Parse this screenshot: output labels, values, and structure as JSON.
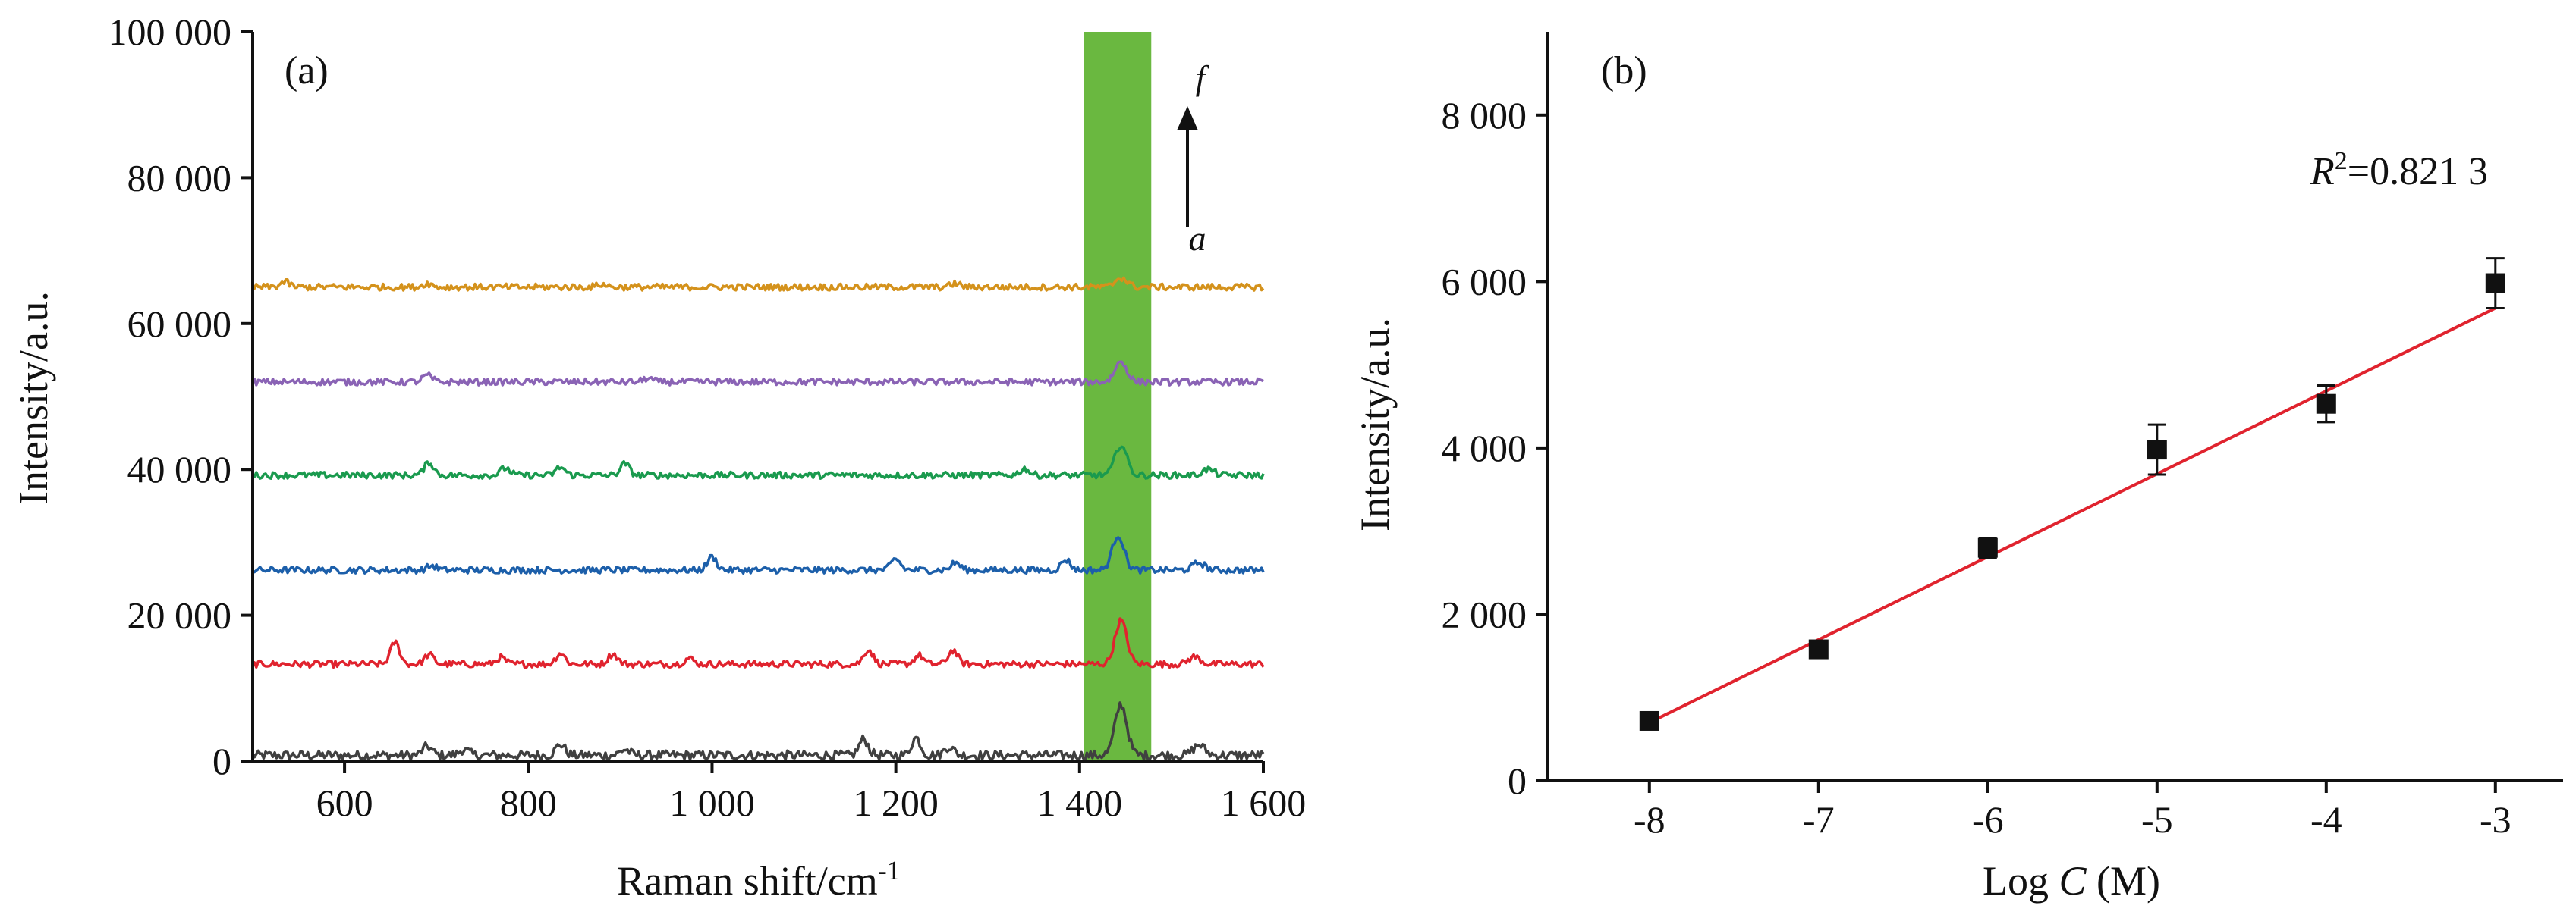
{
  "chart_data": [
    {
      "panel_label": "(a)",
      "type": "line",
      "xlabel": "Raman shift/cm",
      "xlabel_sup": "-1",
      "ylabel": "Intensity/a.u.",
      "xlim": [
        500,
        1600
      ],
      "ylim": [
        0,
        100000
      ],
      "x_ticks": [
        {
          "value": 600,
          "label": "600"
        },
        {
          "value": 800,
          "label": "800"
        },
        {
          "value": 1000,
          "label": "1 000"
        },
        {
          "value": 1200,
          "label": "1 200"
        },
        {
          "value": 1400,
          "label": "1 400"
        },
        {
          "value": 1600,
          "label": "1 600"
        }
      ],
      "y_ticks": [
        {
          "value": 0,
          "label": "0"
        },
        {
          "value": 20000,
          "label": "20 000"
        },
        {
          "value": 40000,
          "label": "40 000"
        },
        {
          "value": 60000,
          "label": "60 000"
        },
        {
          "value": 80000,
          "label": "80 000"
        },
        {
          "value": 100000,
          "label": "100 000"
        }
      ],
      "highlight_band": {
        "x_range": [
          1405,
          1478
        ],
        "color": "#6ab840"
      },
      "arrow": {
        "from": "a",
        "to": "f"
      },
      "series": [
        {
          "color": "#404040",
          "baseline": 800,
          "peaks": [
            [
              690,
              1200
            ],
            [
              730,
              800
            ],
            [
              835,
              1500
            ],
            [
              905,
              800
            ],
            [
              1165,
              2200
            ],
            [
              1222,
              2400
            ],
            [
              1258,
              1200
            ],
            [
              1445,
              7000
            ],
            [
              1530,
              1400
            ]
          ]
        },
        {
          "color": "#e0232e",
          "baseline": 13300,
          "peaks": [
            [
              655,
              3000
            ],
            [
              692,
              1300
            ],
            [
              770,
              900
            ],
            [
              835,
              1500
            ],
            [
              892,
              1400
            ],
            [
              975,
              800
            ],
            [
              1170,
              2000
            ],
            [
              1225,
              1200
            ],
            [
              1262,
              1900
            ],
            [
              1445,
              6000
            ],
            [
              1525,
              1000
            ]
          ]
        },
        {
          "color": "#1c5faa",
          "baseline": 26200,
          "peaks": [
            [
              695,
              600
            ],
            [
              1000,
              1800
            ],
            [
              1200,
              1500
            ],
            [
              1265,
              1000
            ],
            [
              1385,
              1400
            ],
            [
              1442,
              4800
            ],
            [
              1530,
              1000
            ]
          ]
        },
        {
          "color": "#1a9a4e",
          "baseline": 39200,
          "peaks": [
            [
              692,
              1800
            ],
            [
              775,
              1000
            ],
            [
              835,
              1100
            ],
            [
              905,
              1600
            ],
            [
              1340,
              900
            ],
            [
              1445,
              4200
            ],
            [
              1540,
              800
            ]
          ]
        },
        {
          "color": "#8a63b5",
          "baseline": 52000,
          "peaks": [
            [
              690,
              900
            ],
            [
              930,
              500
            ],
            [
              1445,
              2800
            ]
          ]
        },
        {
          "color": "#d4921c",
          "baseline": 65000,
          "peaks": [
            [
              535,
              700
            ],
            [
              690,
              500
            ],
            [
              880,
              400
            ],
            [
              1265,
              500
            ],
            [
              1445,
              1300
            ]
          ]
        }
      ]
    },
    {
      "panel_label": "(b)",
      "type": "scatter",
      "xlabel_prefix": "Log ",
      "xlabel_var": "C",
      "xlabel_suffix": " (M)",
      "ylabel": "Intensity/a.u.",
      "xlim": [
        -8.6,
        -2.6
      ],
      "ylim": [
        0,
        9000
      ],
      "x_ticks": [
        {
          "value": -8,
          "label": "-8"
        },
        {
          "value": -7,
          "label": "-7"
        },
        {
          "value": -6,
          "label": "-6"
        },
        {
          "value": -5,
          "label": "-5"
        },
        {
          "value": -4,
          "label": "-4"
        },
        {
          "value": -3,
          "label": "-3"
        }
      ],
      "y_ticks": [
        {
          "value": 0,
          "label": "0"
        },
        {
          "value": 2000,
          "label": "2 000"
        },
        {
          "value": 4000,
          "label": "4 000"
        },
        {
          "value": 6000,
          "label": "6 000"
        },
        {
          "value": 8000,
          "label": "8 000"
        }
      ],
      "points": [
        {
          "x": -8,
          "y": 720,
          "err": 60
        },
        {
          "x": -7,
          "y": 1580,
          "err": 60
        },
        {
          "x": -6,
          "y": 2800,
          "err": 120
        },
        {
          "x": -5,
          "y": 3980,
          "err": 300
        },
        {
          "x": -4,
          "y": 4530,
          "err": 220
        },
        {
          "x": -3,
          "y": 5980,
          "err": 300
        }
      ],
      "fit_line": {
        "x": [
          -8,
          -3
        ],
        "y": [
          700,
          5680
        ],
        "color": "#e0232e"
      },
      "r2_var": "R",
      "r2_sup": "2",
      "r2_value": "=0.821 3"
    }
  ]
}
